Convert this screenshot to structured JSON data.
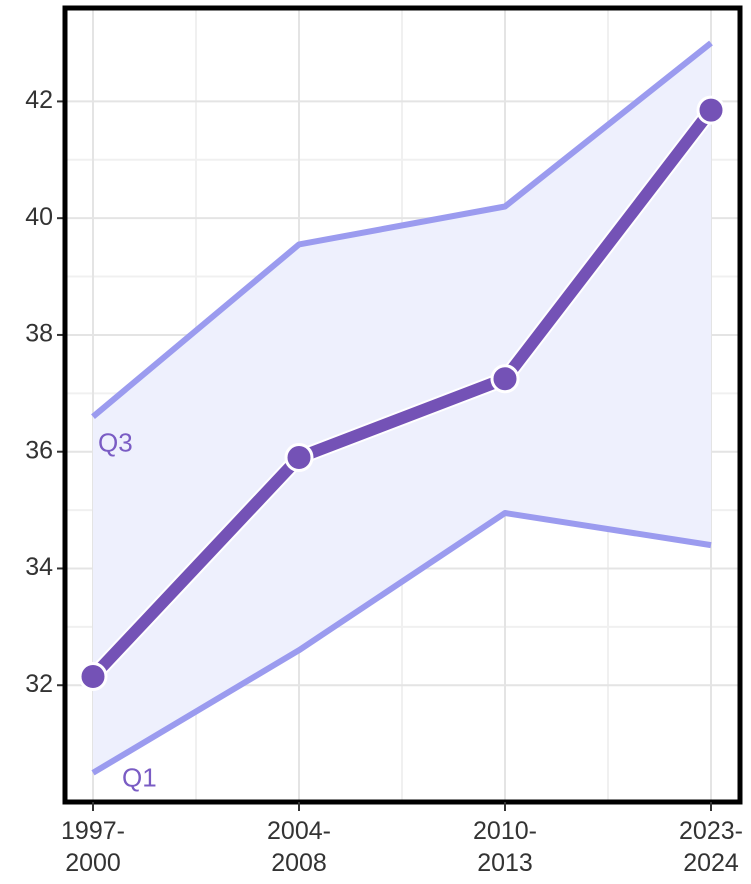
{
  "chart_data": {
    "type": "line",
    "categories": [
      "1997-2000",
      "2004-2008",
      "2010-2013",
      "2023-2024"
    ],
    "series": [
      {
        "name": "Q3",
        "color": "#9b9bef",
        "values": [
          36.6,
          39.55,
          40.2,
          43.0
        ]
      },
      {
        "name": "Q1",
        "color": "#9b9bef",
        "values": [
          30.5,
          32.6,
          34.95,
          34.4
        ]
      },
      {
        "color": "#7452b6",
        "values": [
          32.15,
          35.9,
          37.25,
          41.85
        ]
      }
    ],
    "band_color": "#eef0fd",
    "ylim": [
      30.0,
      43.6
    ],
    "yticks": [
      32,
      34,
      36,
      38,
      40,
      42
    ],
    "grid": true
  }
}
